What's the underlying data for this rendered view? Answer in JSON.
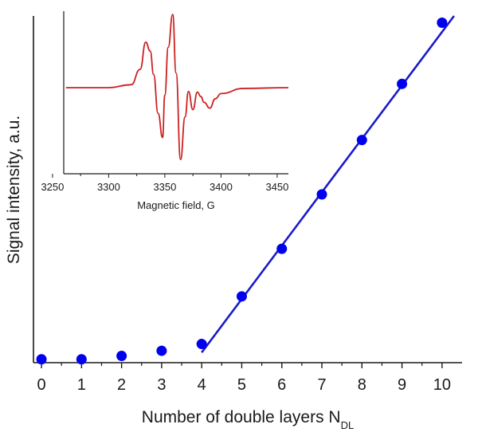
{
  "chart_data": [
    {
      "type": "scatter",
      "role": "main",
      "xlabel": "Number of double layers N",
      "xlabel_sub": "DL",
      "ylabel": "Signal intensity, a.u.",
      "xlim": [
        -0.2,
        10.5
      ],
      "ylim": [
        0,
        10.2
      ],
      "x_ticks": [
        "0",
        "1",
        "2",
        "3",
        "4",
        "5",
        "6",
        "7",
        "8",
        "9",
        "10"
      ],
      "y_ticks_labeled": false,
      "grid": false,
      "colors": {
        "points": "#0000ee",
        "line": "#1a1acc",
        "axes": "#1a1a1a"
      },
      "series": [
        {
          "kind": "points",
          "x": [
            0,
            1,
            2,
            3,
            4,
            5,
            6,
            7,
            8,
            9,
            10
          ],
          "y": [
            0.1,
            0.1,
            0.2,
            0.35,
            0.55,
            1.95,
            3.35,
            4.95,
            6.55,
            8.2,
            10.0
          ]
        },
        {
          "kind": "fit-line",
          "x": [
            4.0,
            10.3
          ],
          "y": [
            0.3,
            10.2
          ]
        }
      ]
    },
    {
      "type": "line",
      "role": "inset",
      "xlabel": "Magnetic field, G",
      "xlim": [
        3260,
        3460
      ],
      "ylim": [
        -1.0,
        1.0
      ],
      "x_ticks": [
        "3250",
        "3300",
        "3350",
        "3400",
        "3450"
      ],
      "y_ticks_labeled": false,
      "grid": false,
      "colors": {
        "line": "#cc2222",
        "axes": "#1a1a1a"
      },
      "series": [
        {
          "x": [
            3262,
            3300,
            3320,
            3328,
            3333,
            3337,
            3340,
            3344,
            3348,
            3350,
            3353,
            3357,
            3360,
            3364,
            3368,
            3371,
            3375,
            3379,
            3382,
            3385,
            3390,
            3395,
            3400,
            3420,
            3460
          ],
          "y": [
            0.0,
            0.0,
            0.04,
            0.25,
            0.62,
            0.5,
            0.18,
            -0.35,
            -0.68,
            -0.1,
            0.55,
            1.0,
            0.2,
            -0.98,
            -0.4,
            -0.05,
            -0.3,
            -0.06,
            -0.12,
            -0.2,
            -0.28,
            -0.15,
            -0.08,
            -0.01,
            0.0
          ]
        }
      ]
    }
  ]
}
